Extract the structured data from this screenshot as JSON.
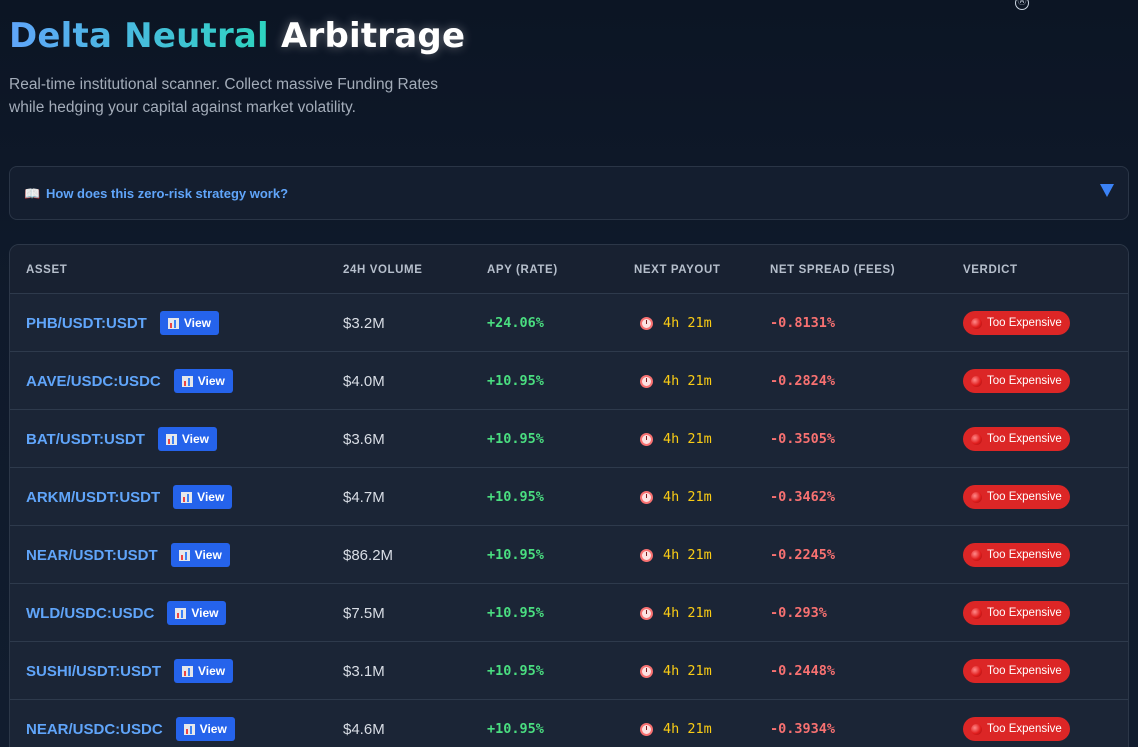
{
  "header": {
    "title_highlight": "Delta Neutral",
    "title_rest": "Arbitrage",
    "subtitle": "Real-time institutional scanner. Collect massive Funding Rates while hedging your capital against market volatility."
  },
  "top_icon": "Ⓐ",
  "faq": {
    "icon": "📖",
    "question": "How does this zero-risk strategy work?"
  },
  "table": {
    "columns": [
      "ASSET",
      "24H VOLUME",
      "APY (RATE)",
      "NEXT PAYOUT",
      "NET SPREAD (FEES)",
      "VERDICT"
    ],
    "view_label": "View",
    "rows": [
      {
        "asset": "PHB/USDT:USDT",
        "volume": "$3.2M",
        "apy": "+24.06%",
        "payout": "4h 21m",
        "spread": "-0.8131%",
        "verdict": "Too Expensive"
      },
      {
        "asset": "AAVE/USDC:USDC",
        "volume": "$4.0M",
        "apy": "+10.95%",
        "payout": "4h 21m",
        "spread": "-0.2824%",
        "verdict": "Too Expensive"
      },
      {
        "asset": "BAT/USDT:USDT",
        "volume": "$3.6M",
        "apy": "+10.95%",
        "payout": "4h 21m",
        "spread": "-0.3505%",
        "verdict": "Too Expensive"
      },
      {
        "asset": "ARKM/USDT:USDT",
        "volume": "$4.7M",
        "apy": "+10.95%",
        "payout": "4h 21m",
        "spread": "-0.3462%",
        "verdict": "Too Expensive"
      },
      {
        "asset": "NEAR/USDT:USDT",
        "volume": "$86.2M",
        "apy": "+10.95%",
        "payout": "4h 21m",
        "spread": "-0.2245%",
        "verdict": "Too Expensive"
      },
      {
        "asset": "WLD/USDC:USDC",
        "volume": "$7.5M",
        "apy": "+10.95%",
        "payout": "4h 21m",
        "spread": "-0.293%",
        "verdict": "Too Expensive"
      },
      {
        "asset": "SUSHI/USDT:USDT",
        "volume": "$3.1M",
        "apy": "+10.95%",
        "payout": "4h 21m",
        "spread": "-0.2448%",
        "verdict": "Too Expensive"
      },
      {
        "asset": "NEAR/USDC:USDC",
        "volume": "$4.6M",
        "apy": "+10.95%",
        "payout": "4h 21m",
        "spread": "-0.3934%",
        "verdict": "Too Expensive"
      }
    ]
  },
  "colors": {
    "accent_blue": "#60a5fa",
    "positive_green": "#4ade80",
    "negative_red": "#f87171",
    "timer_yellow": "#facc15",
    "badge_red": "#dc2626"
  }
}
